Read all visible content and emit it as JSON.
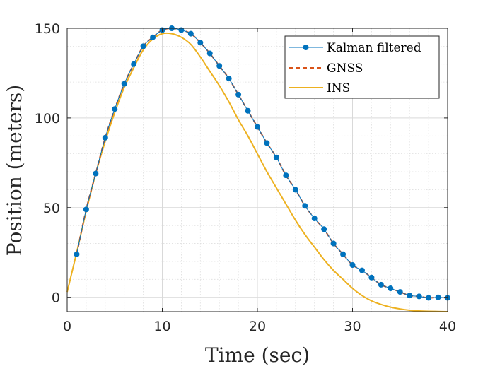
{
  "chart_data": {
    "type": "line",
    "title": "",
    "xlabel": "Time (sec)",
    "ylabel": "Position (meters)",
    "xlim": [
      0,
      40
    ],
    "ylim": [
      -8,
      150
    ],
    "xticks": [
      0,
      10,
      20,
      30,
      40
    ],
    "yticks": [
      0,
      50,
      100,
      150
    ],
    "grid": true,
    "minor_grid": true,
    "legend_position": "top-right",
    "series": [
      {
        "name": "Kalman filtered",
        "style": "solid-with-markers",
        "color": "#0072BD",
        "x": [
          1,
          2,
          3,
          4,
          5,
          6,
          7,
          8,
          9,
          10,
          11,
          12,
          13,
          14,
          15,
          16,
          17,
          18,
          19,
          20,
          21,
          22,
          23,
          24,
          25,
          26,
          27,
          28,
          29,
          30,
          31,
          32,
          33,
          34,
          35,
          36,
          37,
          38,
          39,
          40
        ],
        "y": [
          24,
          49,
          69,
          89,
          105,
          119,
          130,
          140,
          145,
          149,
          150,
          149,
          147,
          142,
          136,
          129,
          122,
          113,
          104,
          95,
          86,
          78,
          68,
          60,
          51,
          44,
          38,
          30,
          24,
          18,
          15,
          11,
          7,
          5,
          3,
          1,
          0.5,
          -0.3,
          0,
          -0.3
        ]
      },
      {
        "name": "GNSS",
        "style": "dashed",
        "color": "#D95319",
        "x": [
          1,
          2,
          3,
          4,
          5,
          6,
          7,
          8,
          9,
          10,
          11,
          12,
          13,
          14,
          15,
          16,
          17,
          18,
          19,
          20,
          21,
          22,
          23,
          24,
          25,
          26,
          27,
          28,
          29,
          30,
          31,
          32,
          33,
          34,
          35,
          36,
          37,
          38,
          39,
          40
        ],
        "y": [
          24,
          49,
          69,
          89,
          105,
          119,
          130,
          140,
          145,
          149,
          150,
          149,
          147,
          142,
          136,
          129,
          122,
          113,
          104,
          95,
          86,
          78,
          68,
          60,
          51,
          44,
          38,
          30,
          24,
          18,
          15,
          11,
          7,
          5,
          3,
          1,
          0.5,
          -0.3,
          0,
          -0.3
        ]
      },
      {
        "name": "INS",
        "style": "solid",
        "color": "#EDB120",
        "x": [
          0,
          1,
          2,
          3,
          4,
          5,
          6,
          7,
          8,
          9,
          10,
          11,
          12,
          13,
          14,
          15,
          16,
          17,
          18,
          19,
          20,
          21,
          22,
          23,
          24,
          25,
          26,
          27,
          28,
          29,
          30,
          31,
          32,
          33,
          34,
          35,
          36,
          37,
          38,
          39,
          40
        ],
        "y": [
          3,
          25,
          48,
          69,
          87,
          103,
          117,
          128,
          138,
          144,
          147,
          147,
          145,
          141,
          134,
          126,
          118,
          109,
          99,
          90,
          80,
          70,
          61,
          52,
          43,
          35,
          28,
          21,
          15,
          10,
          5,
          1,
          -2,
          -4,
          -5.5,
          -6.5,
          -7.2,
          -7.6,
          -7.8,
          -7.9,
          -8
        ]
      }
    ]
  }
}
